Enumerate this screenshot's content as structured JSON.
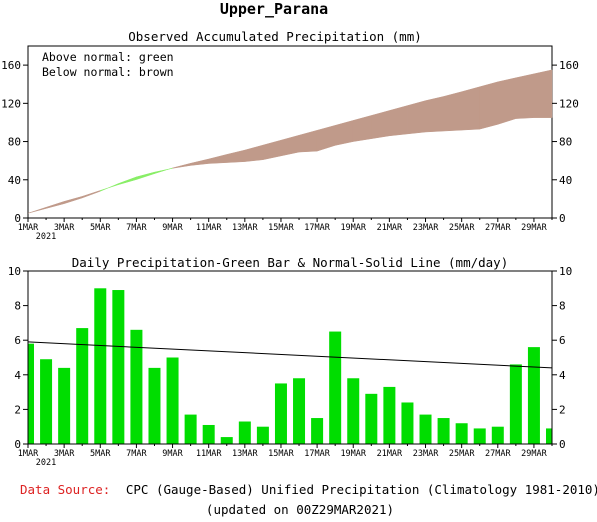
{
  "page": {
    "title": "Upper_Parana",
    "source_label": "Data Source:",
    "source_text": "CPC (Gauge-Based) Unified Precipitation (Climatology 1981-2010)",
    "updated": "(updated on 00Z29MAR2021)"
  },
  "colors": {
    "above": "#88ee66",
    "below": "#c09a8a",
    "bar": "#00dd00",
    "line": "#000000",
    "source_label": "#dd2222"
  },
  "chart_data": [
    {
      "type": "area",
      "title": "Observed Accumulated Precipitation (mm)",
      "legend": [
        "Above normal: green",
        "Below normal: brown"
      ],
      "legend_position": "top-left",
      "ylim": [
        0,
        180
      ],
      "yticks": [
        0,
        40,
        80,
        120,
        160
      ],
      "x_tick_labels": [
        "1MAR",
        "3MAR",
        "5MAR",
        "7MAR",
        "9MAR",
        "11MAR",
        "13MAR",
        "15MAR",
        "17MAR",
        "19MAR",
        "21MAR",
        "23MAR",
        "25MAR",
        "27MAR",
        "29MAR"
      ],
      "x_sublabel": "2021",
      "series": [
        {
          "name": "Observed",
          "values": [
            5,
            10,
            15,
            21,
            28,
            36,
            43,
            48,
            52,
            55,
            57,
            58,
            59,
            61,
            65,
            69,
            70,
            76,
            80,
            83,
            86,
            88,
            90,
            91,
            92,
            93,
            98,
            104,
            105
          ]
        },
        {
          "name": "Normal",
          "values": [
            5,
            11,
            17,
            22,
            28,
            34,
            39,
            45,
            51,
            56,
            60,
            65,
            69,
            74,
            79,
            84,
            89,
            94,
            99,
            104,
            109,
            114,
            119,
            124,
            128,
            133,
            138,
            143,
            147,
            151,
            155
          ]
        }
      ]
    },
    {
      "type": "bar",
      "title": "Daily Precipitation-Green Bar & Normal-Solid Line (mm/day)",
      "ylim": [
        0,
        10
      ],
      "yticks": [
        0,
        2,
        4,
        6,
        8,
        10
      ],
      "x_tick_labels": [
        "1MAR",
        "3MAR",
        "5MAR",
        "7MAR",
        "9MAR",
        "11MAR",
        "13MAR",
        "15MAR",
        "17MAR",
        "19MAR",
        "21MAR",
        "23MAR",
        "25MAR",
        "27MAR",
        "29MAR"
      ],
      "x_sublabel": "2021",
      "series": [
        {
          "name": "Daily",
          "values": [
            5.8,
            4.9,
            4.4,
            6.7,
            9.0,
            8.9,
            6.6,
            4.4,
            5.0,
            1.7,
            1.1,
            0.4,
            1.3,
            1.0,
            3.5,
            3.8,
            1.5,
            6.5,
            3.8,
            2.9,
            3.3,
            2.4,
            1.7,
            1.5,
            1.2,
            0.9,
            1.0,
            4.6,
            5.6,
            0.9
          ]
        },
        {
          "name": "Normal",
          "values": [
            5.9,
            4.4
          ]
        }
      ]
    }
  ]
}
